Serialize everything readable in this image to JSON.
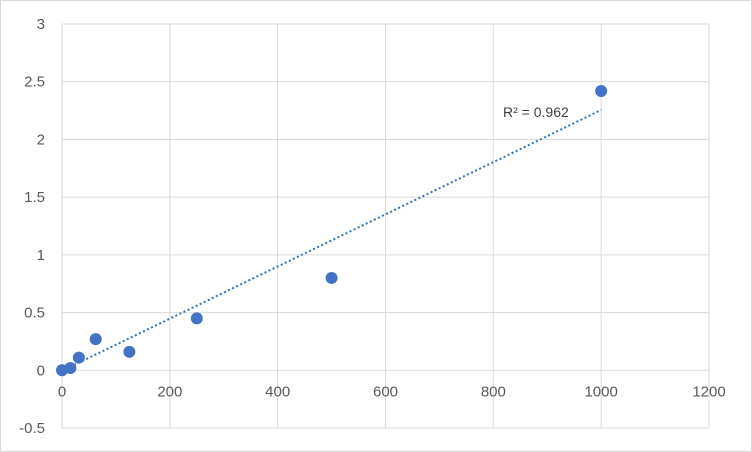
{
  "chart_data": {
    "type": "scatter",
    "title": "",
    "xlabel": "",
    "ylabel": "",
    "xlim": [
      0,
      1200
    ],
    "ylim": [
      -0.5,
      3
    ],
    "x_ticks": [
      0,
      200,
      400,
      600,
      800,
      1000,
      1200
    ],
    "y_ticks": [
      -0.5,
      0,
      0.5,
      1,
      1.5,
      2,
      2.5,
      3
    ],
    "x_tick_labels": [
      "0",
      "200",
      "400",
      "600",
      "800",
      "1000",
      "1200"
    ],
    "y_tick_labels": [
      "-0.5",
      "0",
      "0.5",
      "1",
      "1.5",
      "2",
      "2.5",
      "3"
    ],
    "grid": true,
    "legend": "none",
    "series": [
      {
        "color": "#4472c4",
        "points": [
          {
            "x": 0,
            "y": 0.0
          },
          {
            "x": 15.6,
            "y": 0.02
          },
          {
            "x": 31.25,
            "y": 0.11
          },
          {
            "x": 62.5,
            "y": 0.27
          },
          {
            "x": 125,
            "y": 0.16
          },
          {
            "x": 250,
            "y": 0.45
          },
          {
            "x": 500,
            "y": 0.8
          },
          {
            "x": 1000,
            "y": 2.42
          }
        ]
      }
    ],
    "trendline": {
      "type": "linear",
      "style": "dotted",
      "color": "#2e75b6",
      "x_range": [
        0,
        1000
      ],
      "slope": 0.00226,
      "intercept": -0.005,
      "label": "R² = 0.962"
    }
  }
}
